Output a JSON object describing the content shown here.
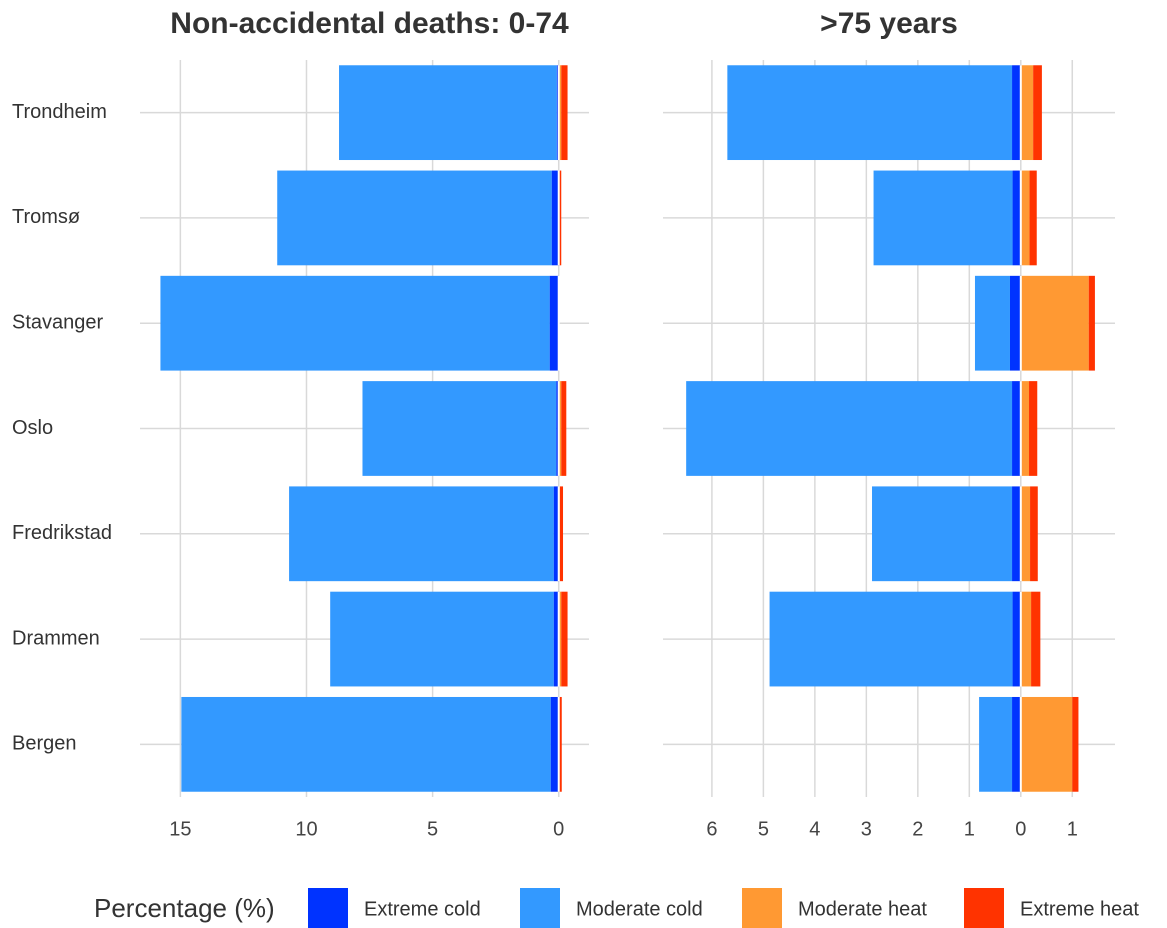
{
  "chart_data": [
    {
      "type": "bar",
      "orientation": "horizontal",
      "stacked": "diverging",
      "title": "Non-accidental deaths: 0-74",
      "legend_title": "Percentage (%)",
      "categories": [
        "Trondheim",
        "Tromsø",
        "Stavanger",
        "Oslo",
        "Fredrikstad",
        "Drammen",
        "Bergen"
      ],
      "series": [
        {
          "name": "Extreme cold",
          "color": "#0033ff",
          "values": [
            -0.08,
            -0.28,
            -0.36,
            -0.1,
            -0.2,
            -0.2,
            -0.32
          ]
        },
        {
          "name": "Moderate cold",
          "color": "#3399ff",
          "values": [
            -8.63,
            -10.88,
            -15.43,
            -7.68,
            -10.49,
            -8.86,
            -14.64
          ]
        },
        {
          "name": "Moderate heat",
          "color": "#ff9933",
          "values": [
            0.1,
            0.02,
            0,
            0.1,
            0.05,
            0.1,
            0.02
          ]
        },
        {
          "name": "Extreme heat",
          "color": "#ff3300",
          "values": [
            0.25,
            0.08,
            0,
            0.2,
            0.12,
            0.25,
            0.1
          ]
        }
      ],
      "xlim": [
        -16.6,
        1.2
      ],
      "xticks": [
        {
          "value": -15,
          "label": "15"
        },
        {
          "value": -10,
          "label": "10"
        },
        {
          "value": -5,
          "label": "5"
        },
        0
      ],
      "grid": true
    },
    {
      "type": "bar",
      "orientation": "horizontal",
      "stacked": "diverging",
      "title": ">75 years",
      "series": [
        {
          "color": "#0033ff",
          "values": [
            -0.17,
            -0.16,
            -0.21,
            -0.17,
            -0.17,
            -0.16,
            -0.17
          ]
        },
        {
          "color": "#3399ff",
          "values": [
            -5.53,
            -2.7,
            -0.68,
            -6.33,
            -2.72,
            -4.72,
            -0.64
          ]
        },
        {
          "color": "#ff9933",
          "values": [
            0.24,
            0.17,
            1.32,
            0.16,
            0.18,
            0.2,
            1.0
          ]
        },
        {
          "color": "#ff3300",
          "values": [
            0.17,
            0.14,
            0.12,
            0.16,
            0.15,
            0.18,
            0.12
          ]
        }
      ],
      "xlim": [
        -6.95,
        1.83
      ],
      "xticks": [
        {
          "value": -6,
          "label": "6"
        },
        {
          "value": -5,
          "label": "5"
        },
        {
          "value": -4,
          "label": "4"
        },
        {
          "value": -3,
          "label": "3"
        },
        {
          "value": -2,
          "label": "2"
        },
        {
          "value": -1,
          "label": "1"
        },
        0,
        1
      ],
      "grid": true
    }
  ]
}
